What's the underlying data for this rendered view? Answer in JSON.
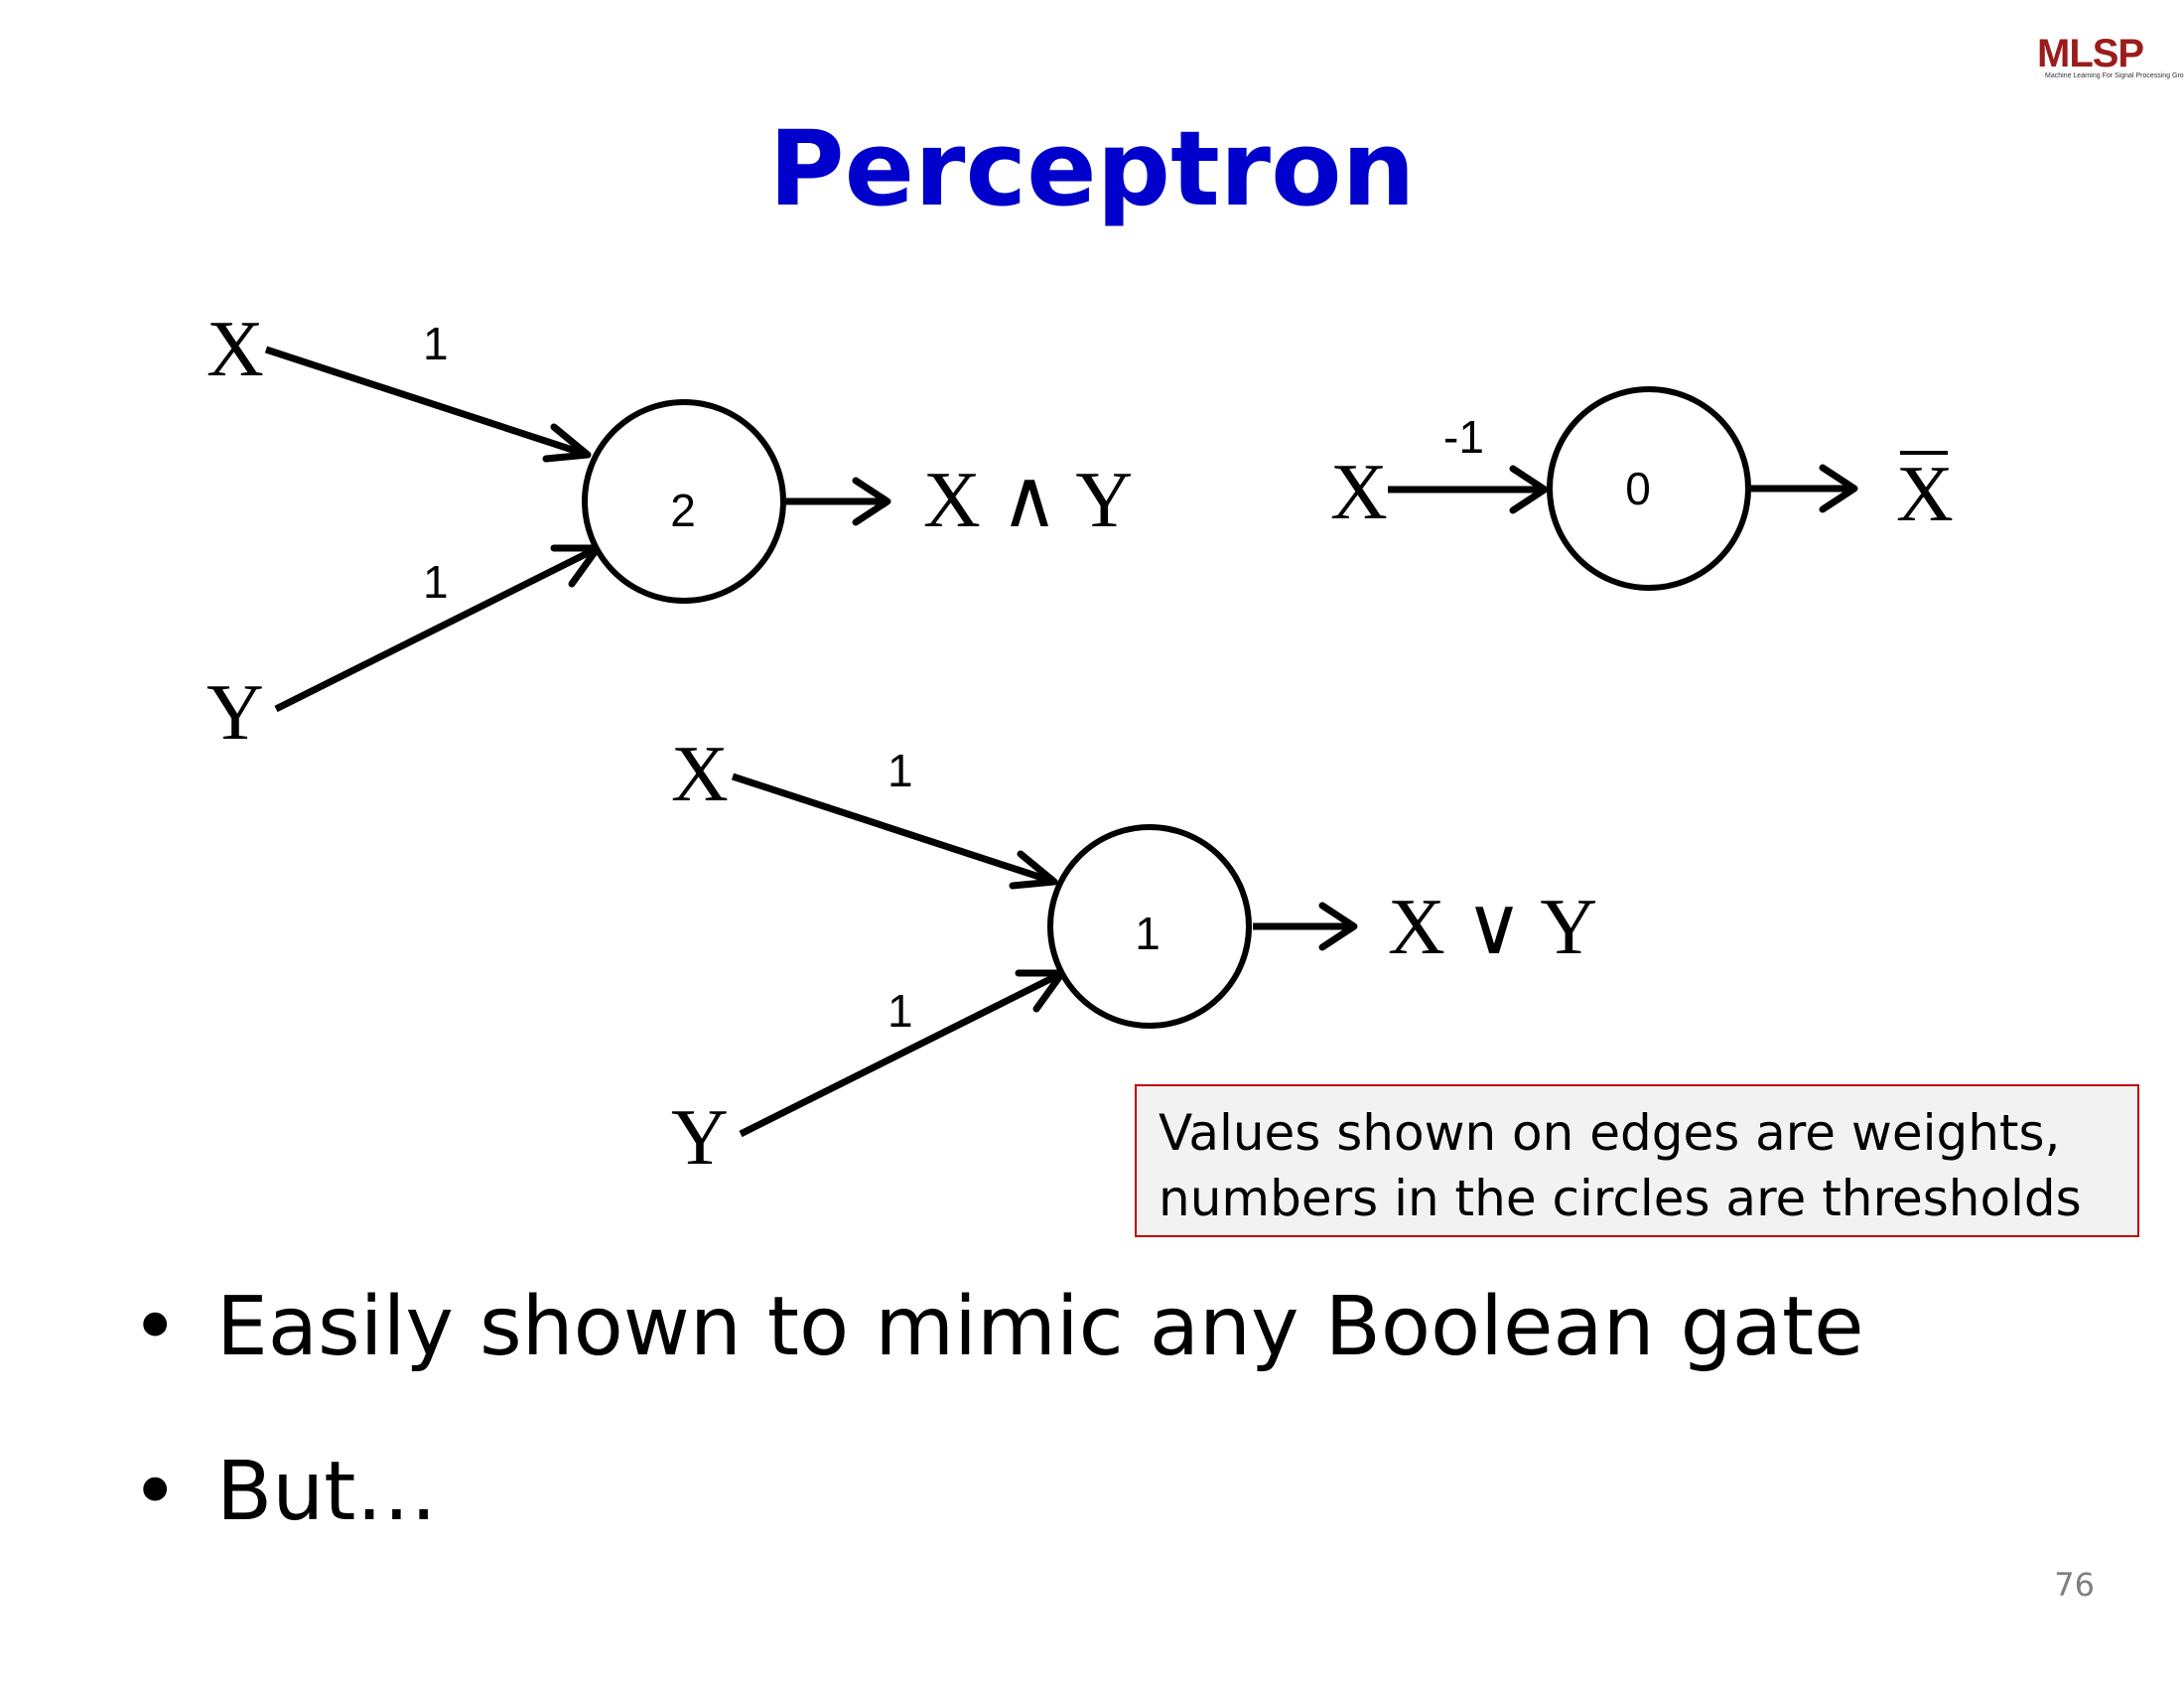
{
  "slide": {
    "title": "Perceptron",
    "logo": {
      "main": "MLSP",
      "subtitle": "Machine Learning For Signal Processing Group"
    },
    "page_number": "76"
  },
  "diagrams": {
    "and_gate": {
      "inputs": [
        {
          "label": "X",
          "weight": "1"
        },
        {
          "label": "Y",
          "weight": "1"
        }
      ],
      "threshold": "2",
      "output": "X ∧ Y"
    },
    "not_gate": {
      "inputs": [
        {
          "label": "X",
          "weight": "-1"
        }
      ],
      "threshold": "0",
      "output": "X"
    },
    "or_gate": {
      "inputs": [
        {
          "label": "X",
          "weight": "1"
        },
        {
          "label": "Y",
          "weight": "1"
        }
      ],
      "threshold": "1",
      "output": "X ∨ Y"
    }
  },
  "note": {
    "line1": "Values shown on edges are weights,",
    "line2": "numbers in the circles are thresholds"
  },
  "bullets": [
    "Easily shown to mimic any Boolean gate",
    "But…"
  ]
}
